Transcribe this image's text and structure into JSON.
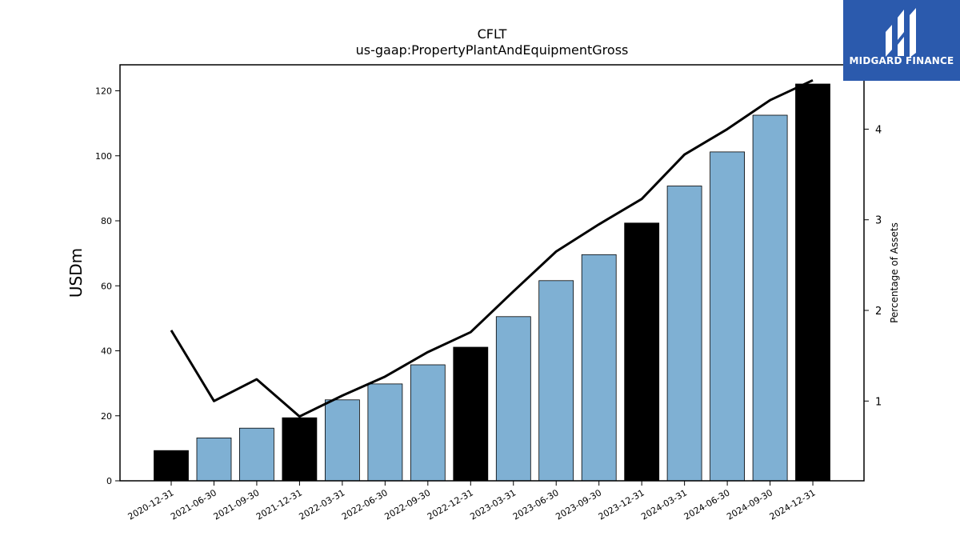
{
  "brand": {
    "name": "MIDGARD FINANCE",
    "bg_color": "#2b5aad"
  },
  "colors": {
    "bar_quarter": "#7fb0d3",
    "bar_year_end": "#000000",
    "line": "#000000"
  },
  "chart_data": {
    "type": "bar",
    "title": "CFLT",
    "subtitle": "us-gaap:PropertyPlantAndEquipmentGross",
    "ylabel": "USDm",
    "y2label": "Percentage of Assets",
    "ylim": [
      0,
      128
    ],
    "y2lim": [
      0.12,
      4.71
    ],
    "yticks": [
      0,
      20,
      40,
      60,
      80,
      100,
      120
    ],
    "y2ticks": [
      1,
      2,
      3,
      4
    ],
    "categories": [
      "2020-12-31",
      "2021-06-30",
      "2021-09-30",
      "2021-12-31",
      "2022-03-31",
      "2022-06-30",
      "2022-09-30",
      "2022-12-31",
      "2023-03-31",
      "2023-06-30",
      "2023-09-30",
      "2023-12-31",
      "2024-03-31",
      "2024-06-30",
      "2024-09-30",
      "2024-12-31"
    ],
    "series": [
      {
        "kind": "bar",
        "axis": "left",
        "values": [
          9.3,
          13.2,
          16.2,
          19.4,
          24.9,
          29.8,
          35.7,
          41.1,
          50.5,
          61.6,
          69.6,
          79.3,
          90.7,
          101.2,
          112.5,
          122.1
        ],
        "year_end": [
          true,
          false,
          false,
          true,
          false,
          false,
          false,
          true,
          false,
          false,
          false,
          true,
          false,
          false,
          false,
          true
        ]
      },
      {
        "kind": "line",
        "axis": "right",
        "values": [
          1.78,
          1.0,
          1.24,
          0.83,
          1.06,
          1.27,
          1.54,
          1.76,
          2.21,
          2.65,
          2.95,
          3.23,
          3.72,
          4.0,
          4.32,
          4.54
        ]
      }
    ]
  }
}
